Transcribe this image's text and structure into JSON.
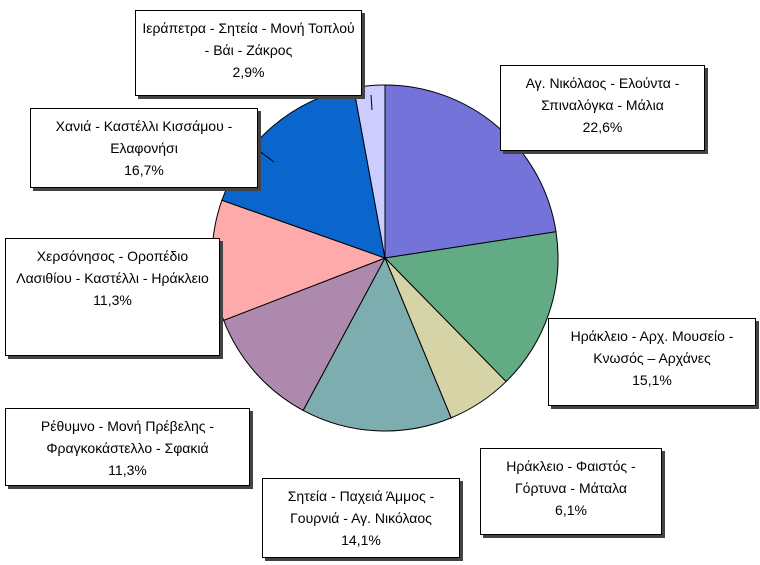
{
  "chart_data": {
    "type": "pie",
    "categories": [
      "Αγ. Νικόλαος - Ελούντα - Σπιναλόγκα - Μάλια",
      "Ηράκλειο - Αρχ. Μουσείο - Κνωσός – Αρχάνες",
      "Ηράκλειο - Φαιστός - Γόρτυνα - Μάταλα",
      "Σητεία - Παχειά Άμμος - Γουρνιά - Αγ. Νικόλαος",
      "Ρέθυμνο - Μονή Πρέβελης - Φραγκοκάστελλο - Σφακιά",
      "Χερσόνησος - Οροπέδιο Λασιθίου - Καστέλλι - Ηράκλειο",
      "Χανιά - Καστέλλι Κισσάμου - Ελαφονήσι",
      "Ιεράπετρα - Σητεία - Μονή Τοπλού - Βάι - Ζάκρος"
    ],
    "values": [
      22.6,
      15.1,
      6.1,
      14.1,
      11.3,
      11.3,
      16.7,
      2.9
    ],
    "value_labels": [
      "22,6%",
      "15,1%",
      "6,1%",
      "14,1%",
      "11,3%",
      "11,3%",
      "16,7%",
      "2,9%"
    ],
    "colors": [
      "#7373d9",
      "#62ab84",
      "#d6d3a6",
      "#7eadb0",
      "#ad8aad",
      "#ffaaaa",
      "#0a66cc",
      "#ccccff"
    ]
  }
}
